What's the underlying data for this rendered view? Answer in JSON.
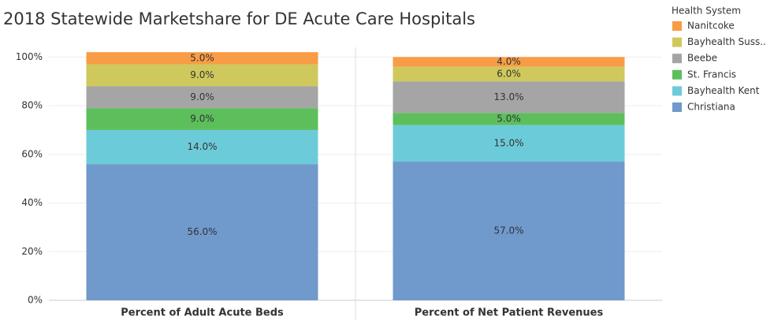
{
  "chart_data": {
    "type": "stacked_bar",
    "title": "2018 Statewide Marketshare for DE Acute Care Hospitals",
    "legend_title": "Health System",
    "categories": [
      "Percent of Adult Acute Beds",
      "Percent of Net Patient Revenues"
    ],
    "series": [
      {
        "name": "Christiana",
        "color": "#7099cc",
        "values": [
          56,
          57
        ],
        "value_labels": [
          "56.0%",
          "57.0%"
        ]
      },
      {
        "name": "Bayhealth Kent",
        "color": "#6ccbd9",
        "values": [
          14,
          15
        ],
        "value_labels": [
          "14.0%",
          "15.0%"
        ]
      },
      {
        "name": "St. Francis",
        "color": "#5cbf5c",
        "values": [
          9,
          5
        ],
        "value_labels": [
          "9.0%",
          "5.0%"
        ]
      },
      {
        "name": "Beebe",
        "color": "#a5a5a5",
        "values": [
          9,
          13
        ],
        "value_labels": [
          "9.0%",
          "13.0%"
        ]
      },
      {
        "name": "Bayhealth Suss..",
        "color": "#cfc85c",
        "values": [
          9,
          6
        ],
        "value_labels": [
          "9.0%",
          "6.0%"
        ]
      },
      {
        "name": "Nanitcoke",
        "color": "#f89c45",
        "values": [
          5,
          4
        ],
        "value_labels": [
          "5.0%",
          "4.0%"
        ]
      }
    ],
    "ylim": [
      0,
      104
    ],
    "yticks": [
      {
        "value": 0,
        "label": "0%"
      },
      {
        "value": 20,
        "label": "20%"
      },
      {
        "value": 40,
        "label": "40%"
      },
      {
        "value": 60,
        "label": "60%"
      },
      {
        "value": 80,
        "label": "80%"
      },
      {
        "value": 100,
        "label": "100%"
      }
    ],
    "grid": true,
    "legend": "right"
  }
}
